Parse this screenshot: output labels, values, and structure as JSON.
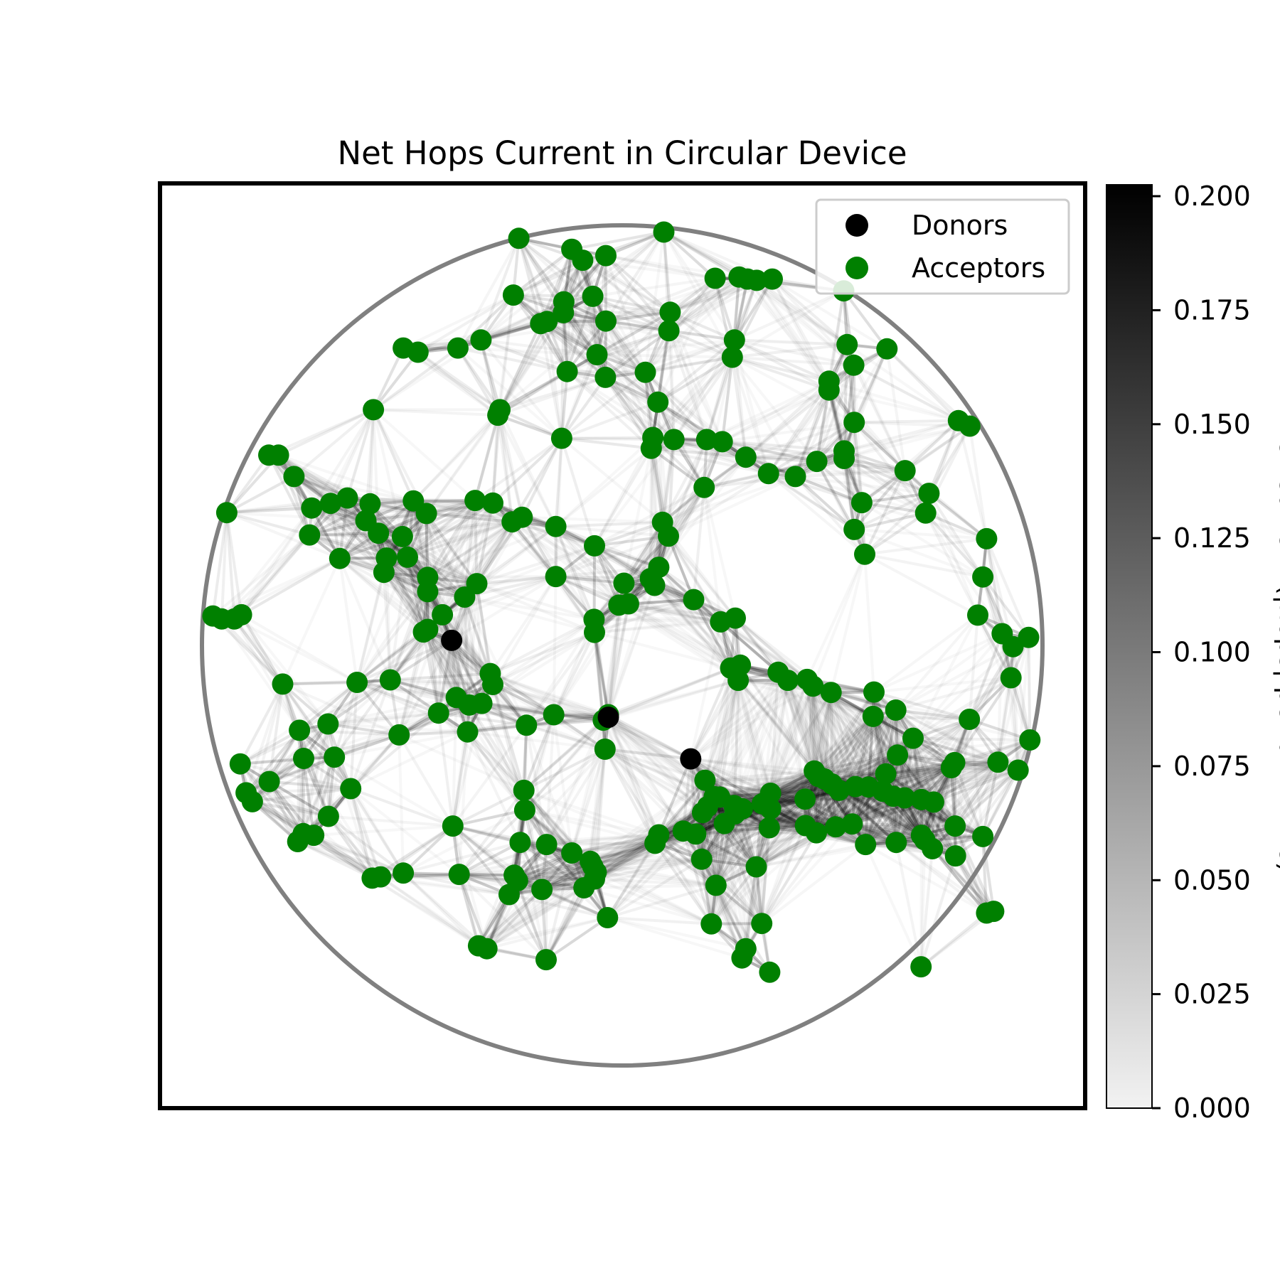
{
  "chart_data": {
    "type": "scatter",
    "title": "Net Hops Current in Circular Device",
    "xlabel": "",
    "ylabel": "",
    "xlim": [
      -1.1,
      1.1
    ],
    "ylim": [
      -1.1,
      1.1
    ],
    "grid": false,
    "legend_placement": "top-right",
    "device_boundary": {
      "shape": "circle",
      "center": [
        0,
        0
      ],
      "radius": 1.0,
      "color": "#808080"
    },
    "series": [
      {
        "name": "Donors",
        "color": "#000000",
        "points": [
          [
            -0.406,
            0.012
          ],
          [
            -0.033,
            -0.171
          ],
          [
            0.163,
            -0.27
          ]
        ]
      },
      {
        "name": "Acceptors",
        "color": "#008000",
        "points": [
          [
            -0.246,
            0.969
          ],
          [
            -0.12,
            0.943
          ],
          [
            -0.094,
            0.917
          ],
          [
            -0.039,
            0.928
          ],
          [
            0.099,
            0.984
          ],
          [
            -0.259,
            0.834
          ],
          [
            -0.139,
            0.818
          ],
          [
            -0.14,
            0.792
          ],
          [
            -0.07,
            0.831
          ],
          [
            -0.039,
            0.772
          ],
          [
            -0.194,
            0.766
          ],
          [
            -0.179,
            0.771
          ],
          [
            0.114,
            0.793
          ],
          [
            0.111,
            0.749
          ],
          [
            0.221,
            0.874
          ],
          [
            0.278,
            0.877
          ],
          [
            0.298,
            0.872
          ],
          [
            0.32,
            0.869
          ],
          [
            0.357,
            0.872
          ],
          [
            0.267,
            0.727
          ],
          [
            0.262,
            0.686
          ],
          [
            0.527,
            0.844
          ],
          [
            0.535,
            0.716
          ],
          [
            0.63,
            0.706
          ],
          [
            0.492,
            0.629
          ],
          [
            0.492,
            0.608
          ],
          [
            0.551,
            0.667
          ],
          [
            -0.521,
            0.708
          ],
          [
            -0.486,
            0.698
          ],
          [
            -0.391,
            0.708
          ],
          [
            -0.336,
            0.727
          ],
          [
            -0.06,
            0.692
          ],
          [
            -0.131,
            0.652
          ],
          [
            -0.04,
            0.638
          ],
          [
            0.055,
            0.65
          ],
          [
            0.085,
            0.579
          ],
          [
            -0.592,
            0.561
          ],
          [
            -0.296,
            0.548
          ],
          [
            -0.291,
            0.561
          ],
          [
            -0.144,
            0.493
          ],
          [
            0.073,
            0.495
          ],
          [
            0.069,
            0.469
          ],
          [
            0.123,
            0.49
          ],
          [
            0.201,
            0.49
          ],
          [
            0.238,
            0.485
          ],
          [
            0.294,
            0.448
          ],
          [
            0.348,
            0.409
          ],
          [
            0.412,
            0.402
          ],
          [
            0.463,
            0.438
          ],
          [
            0.528,
            0.463
          ],
          [
            0.552,
            0.531
          ],
          [
            0.528,
            0.445
          ],
          [
            0.8,
            0.535
          ],
          [
            0.827,
            0.522
          ],
          [
            0.673,
            0.416
          ],
          [
            0.57,
            0.34
          ],
          [
            0.73,
            0.362
          ],
          [
            0.722,
            0.315
          ],
          [
            0.552,
            0.276
          ],
          [
            0.577,
            0.217
          ],
          [
            0.867,
            0.254
          ],
          [
            0.858,
            0.163
          ],
          [
            0.846,
            0.072
          ],
          [
            0.904,
            0.028
          ],
          [
            0.93,
            -0.003
          ],
          [
            0.967,
            0.019
          ],
          [
            0.925,
            -0.077
          ],
          [
            0.97,
            -0.225
          ],
          [
            0.826,
            -0.176
          ],
          [
            0.692,
            -0.221
          ],
          [
            0.599,
            -0.111
          ],
          [
            0.651,
            -0.154
          ],
          [
            0.597,
            -0.169
          ],
          [
            0.497,
            -0.112
          ],
          [
            0.454,
            -0.097
          ],
          [
            0.44,
            -0.081
          ],
          [
            0.371,
            -0.064
          ],
          [
            0.394,
            -0.083
          ],
          [
            0.258,
            -0.054
          ],
          [
            0.276,
            -0.083
          ],
          [
            0.281,
            -0.047
          ],
          [
            0.269,
            0.065
          ],
          [
            0.234,
            0.056
          ],
          [
            0.087,
            0.186
          ],
          [
            0.067,
            0.159
          ],
          [
            0.11,
            0.26
          ],
          [
            0.096,
            0.293
          ],
          [
            0.195,
            0.376
          ],
          [
            0.077,
            0.143
          ],
          [
            0.17,
            0.109
          ],
          [
            -0.066,
            0.237
          ],
          [
            0.004,
            0.148
          ],
          [
            0.015,
            0.099
          ],
          [
            -0.008,
            0.096
          ],
          [
            -0.067,
            0.062
          ],
          [
            -0.066,
            0.031
          ],
          [
            -0.158,
            0.164
          ],
          [
            -0.158,
            0.283
          ],
          [
            -0.6,
            0.337
          ],
          [
            -0.694,
            0.338
          ],
          [
            -0.739,
            0.327
          ],
          [
            -0.841,
            0.453
          ],
          [
            -0.818,
            0.453
          ],
          [
            -0.781,
            0.402
          ],
          [
            -0.654,
            0.351
          ],
          [
            -0.61,
            0.297
          ],
          [
            -0.497,
            0.344
          ],
          [
            -0.58,
            0.267
          ],
          [
            -0.523,
            0.259
          ],
          [
            -0.561,
            0.208
          ],
          [
            -0.466,
            0.314
          ],
          [
            -0.262,
            0.294
          ],
          [
            -0.308,
            0.339
          ],
          [
            -0.35,
            0.345
          ],
          [
            -0.238,
            0.305
          ],
          [
            -0.346,
            0.147
          ],
          [
            -0.375,
            0.115
          ],
          [
            -0.428,
            0.073
          ],
          [
            -0.463,
            0.038
          ],
          [
            -0.473,
            0.032
          ],
          [
            -0.463,
            0.128
          ],
          [
            -0.463,
            0.162
          ],
          [
            -0.511,
            0.21
          ],
          [
            -0.567,
            0.174
          ],
          [
            -0.941,
            0.316
          ],
          [
            -0.744,
            0.263
          ],
          [
            -0.672,
            0.207
          ],
          [
            -0.974,
            0.07
          ],
          [
            -0.906,
            0.073
          ],
          [
            -0.923,
            0.063
          ],
          [
            -0.953,
            0.063
          ],
          [
            -0.808,
            -0.092
          ],
          [
            -0.631,
            -0.088
          ],
          [
            -0.552,
            -0.082
          ],
          [
            -0.531,
            -0.213
          ],
          [
            -0.437,
            -0.161
          ],
          [
            -0.395,
            -0.124
          ],
          [
            -0.364,
            -0.142
          ],
          [
            -0.314,
            -0.067
          ],
          [
            -0.308,
            -0.093
          ],
          [
            -0.334,
            -0.138
          ],
          [
            -0.368,
            -0.206
          ],
          [
            -0.228,
            -0.19
          ],
          [
            -0.163,
            -0.165
          ],
          [
            -0.045,
            -0.178
          ],
          [
            -0.041,
            -0.247
          ],
          [
            -0.033,
            -0.165
          ],
          [
            -0.234,
            -0.345
          ],
          [
            -0.232,
            -0.392
          ],
          [
            -0.076,
            -0.514
          ],
          [
            -0.07,
            -0.526
          ],
          [
            -0.062,
            -0.54
          ],
          [
            -0.066,
            -0.556
          ],
          [
            -0.091,
            -0.577
          ],
          [
            -0.191,
            -0.581
          ],
          [
            -0.269,
            -0.593
          ],
          [
            -0.249,
            -0.56
          ],
          [
            -0.257,
            -0.547
          ],
          [
            -0.243,
            -0.469
          ],
          [
            -0.18,
            -0.474
          ],
          [
            -0.035,
            -0.648
          ],
          [
            -0.12,
            -0.494
          ],
          [
            -0.388,
            -0.545
          ],
          [
            -0.521,
            -0.542
          ],
          [
            -0.575,
            -0.551
          ],
          [
            -0.595,
            -0.554
          ],
          [
            -0.403,
            -0.43
          ],
          [
            -0.342,
            -0.715
          ],
          [
            -0.322,
            -0.722
          ],
          [
            -0.181,
            -0.748
          ],
          [
            -0.7,
            -0.187
          ],
          [
            -0.768,
            -0.202
          ],
          [
            -0.758,
            -0.269
          ],
          [
            -0.685,
            -0.266
          ],
          [
            -0.646,
            -0.341
          ],
          [
            -0.699,
            -0.407
          ],
          [
            -0.772,
            -0.467
          ],
          [
            -0.734,
            -0.452
          ],
          [
            -0.759,
            -0.448
          ],
          [
            -0.909,
            -0.282
          ],
          [
            -0.895,
            -0.351
          ],
          [
            -0.88,
            -0.372
          ],
          [
            -0.84,
            -0.324
          ],
          [
            0.078,
            -0.471
          ],
          [
            0.087,
            -0.451
          ],
          [
            0.175,
            -0.449
          ],
          [
            0.145,
            -0.442
          ],
          [
            0.243,
            -0.424
          ],
          [
            0.203,
            -0.384
          ],
          [
            0.191,
            -0.398
          ],
          [
            0.268,
            -0.401
          ],
          [
            0.189,
            -0.509
          ],
          [
            0.319,
            -0.527
          ],
          [
            0.223,
            -0.571
          ],
          [
            0.212,
            -0.663
          ],
          [
            0.294,
            -0.722
          ],
          [
            0.285,
            -0.744
          ],
          [
            0.351,
            -0.778
          ],
          [
            0.332,
            -0.662
          ],
          [
            0.219,
            -0.36
          ],
          [
            0.333,
            -0.377
          ],
          [
            0.197,
            -0.321
          ],
          [
            0.232,
            -0.361
          ],
          [
            0.266,
            -0.381
          ],
          [
            0.286,
            -0.389
          ],
          [
            0.353,
            -0.352
          ],
          [
            0.435,
            -0.366
          ],
          [
            0.516,
            -0.345
          ],
          [
            0.555,
            -0.336
          ],
          [
            0.586,
            -0.337
          ],
          [
            0.62,
            -0.347
          ],
          [
            0.645,
            -0.359
          ],
          [
            0.672,
            -0.363
          ],
          [
            0.712,
            -0.367
          ],
          [
            0.741,
            -0.373
          ],
          [
            0.792,
            -0.43
          ],
          [
            0.712,
            -0.452
          ],
          [
            0.72,
            -0.463
          ],
          [
            0.652,
            -0.469
          ],
          [
            0.579,
            -0.474
          ],
          [
            0.547,
            -0.425
          ],
          [
            0.508,
            -0.432
          ],
          [
            0.462,
            -0.446
          ],
          [
            0.436,
            -0.429
          ],
          [
            0.35,
            -0.434
          ],
          [
            0.353,
            -0.389
          ],
          [
            0.457,
            -0.299
          ],
          [
            0.467,
            -0.312
          ],
          [
            0.481,
            -0.318
          ],
          [
            0.499,
            -0.33
          ],
          [
            0.627,
            -0.306
          ],
          [
            0.655,
            -0.261
          ],
          [
            0.783,
            -0.291
          ],
          [
            0.791,
            -0.279
          ],
          [
            0.894,
            -0.278
          ],
          [
            0.942,
            -0.297
          ],
          [
            0.738,
            -0.484
          ],
          [
            0.858,
            -0.455
          ],
          [
            0.793,
            -0.501
          ],
          [
            0.867,
            -0.637
          ],
          [
            0.884,
            -0.633
          ],
          [
            0.711,
            -0.765
          ]
        ]
      }
    ],
    "colorbar": {
      "label": "Net Current (|hops| per unit time)",
      "min": 0.0,
      "max": 0.2,
      "ticks": [
        "0.000",
        "0.025",
        "0.050",
        "0.075",
        "0.100",
        "0.125",
        "0.150",
        "0.175",
        "0.200"
      ],
      "color_low": "#ffffff",
      "color_high": "#000000"
    },
    "edges": {
      "description_key": "hops",
      "color": "#000000",
      "max_current": 0.2
    }
  }
}
